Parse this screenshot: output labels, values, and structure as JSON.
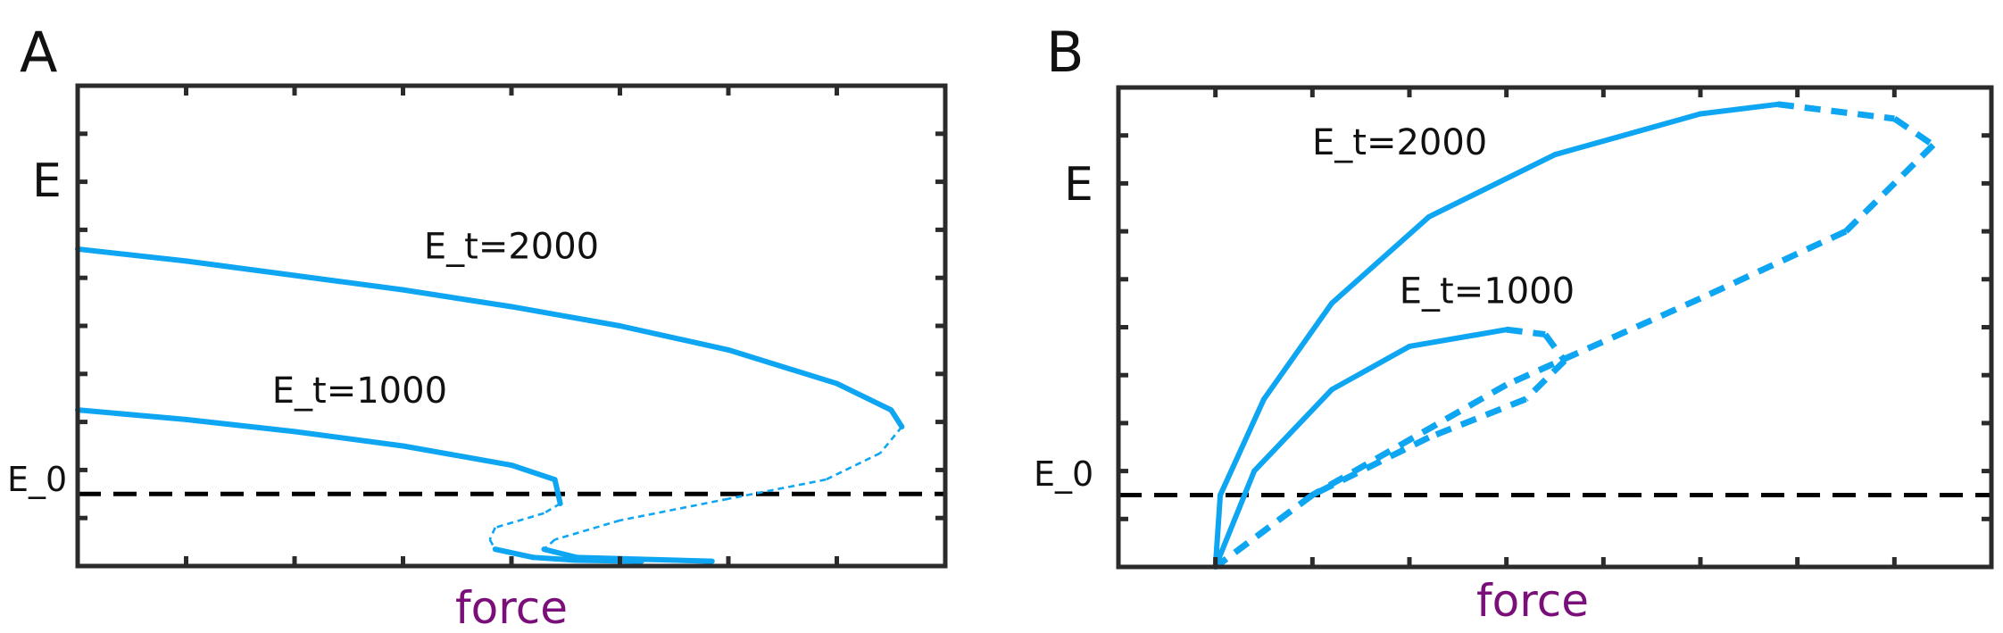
{
  "colors": {
    "curve": "#0ea5f2",
    "axes": "#2b2b2b",
    "reference_line": "#000000",
    "xlabel": "#7a0f7a"
  },
  "chart_data": [
    {
      "type": "line",
      "panel_label": "A",
      "xlabel": "force",
      "ylabel": "E",
      "xlim": [
        0,
        8
      ],
      "ylim": [
        0,
        10
      ],
      "xticks": 8,
      "yticks": 10,
      "reference_line": {
        "label": "E_0",
        "y": 1.5,
        "style": "dashed"
      },
      "series": [
        {
          "name": "E_t=2000",
          "label_at": [
            4.0,
            6.4
          ],
          "points": [
            [
              0.0,
              6.6,
              "solid"
            ],
            [
              1.0,
              6.35,
              "solid"
            ],
            [
              2.0,
              6.05,
              "solid"
            ],
            [
              3.0,
              5.75,
              "solid"
            ],
            [
              4.0,
              5.4,
              "solid"
            ],
            [
              5.0,
              5.0,
              "solid"
            ],
            [
              6.0,
              4.5,
              "solid"
            ],
            [
              7.0,
              3.8,
              "solid"
            ],
            [
              7.5,
              3.25,
              "solid"
            ],
            [
              7.6,
              2.9,
              "solid"
            ],
            [
              7.4,
              2.35,
              "dotted"
            ],
            [
              6.9,
              1.8,
              "dotted"
            ],
            [
              6.0,
              1.4,
              "dotted"
            ],
            [
              5.0,
              0.95,
              "dotted"
            ],
            [
              4.4,
              0.55,
              "dotted"
            ],
            [
              4.3,
              0.35,
              "dotted"
            ],
            [
              4.6,
              0.18,
              "solid"
            ],
            [
              5.85,
              0.1,
              "solid"
            ]
          ]
        },
        {
          "name": "E_t=1000",
          "label_at": [
            2.6,
            3.4
          ],
          "points": [
            [
              0.0,
              3.25,
              "solid"
            ],
            [
              1.0,
              3.05,
              "solid"
            ],
            [
              2.0,
              2.8,
              "solid"
            ],
            [
              3.0,
              2.5,
              "solid"
            ],
            [
              4.0,
              2.1,
              "solid"
            ],
            [
              4.4,
              1.8,
              "solid"
            ],
            [
              4.45,
              1.3,
              "solid"
            ],
            [
              4.3,
              1.1,
              "dotted"
            ],
            [
              3.85,
              0.8,
              "dotted"
            ],
            [
              3.8,
              0.55,
              "dotted"
            ],
            [
              3.85,
              0.35,
              "dotted"
            ],
            [
              4.2,
              0.18,
              "solid"
            ],
            [
              4.6,
              0.12,
              "solid"
            ],
            [
              5.2,
              0.1,
              "solid"
            ]
          ]
        }
      ]
    },
    {
      "type": "line",
      "panel_label": "B",
      "xlabel": "force",
      "ylabel": "E",
      "xlim": [
        0,
        9
      ],
      "ylim": [
        0,
        10
      ],
      "xticks": 9,
      "yticks": 10,
      "reference_line": {
        "label": "E_0",
        "y": 1.5,
        "style": "dashed"
      },
      "series": [
        {
          "name": "E_t=2000",
          "label_at": [
            2.9,
            8.6
          ],
          "points": [
            [
              1.0,
              0.0,
              "solid"
            ],
            [
              1.05,
              1.5,
              "solid"
            ],
            [
              1.5,
              3.5,
              "solid"
            ],
            [
              2.2,
              5.5,
              "solid"
            ],
            [
              3.2,
              7.3,
              "solid"
            ],
            [
              4.5,
              8.6,
              "solid"
            ],
            [
              6.0,
              9.45,
              "solid"
            ],
            [
              6.8,
              9.65,
              "solid"
            ],
            [
              8.0,
              9.35,
              "dashed"
            ],
            [
              8.4,
              8.8,
              "dashed"
            ],
            [
              7.5,
              7.0,
              "dashed"
            ],
            [
              6.0,
              5.6,
              "dashed"
            ],
            [
              4.0,
              3.8,
              "dashed"
            ],
            [
              2.0,
              1.5,
              "dashed"
            ],
            [
              1.0,
              0.0,
              "dashed"
            ]
          ]
        },
        {
          "name": "E_t=1000",
          "label_at": [
            3.8,
            5.5
          ],
          "points": [
            [
              1.0,
              0.0,
              "solid"
            ],
            [
              1.4,
              2.0,
              "solid"
            ],
            [
              2.2,
              3.7,
              "solid"
            ],
            [
              3.0,
              4.6,
              "solid"
            ],
            [
              4.0,
              4.95,
              "solid"
            ],
            [
              4.4,
              4.85,
              "dashed"
            ],
            [
              4.6,
              4.3,
              "dashed"
            ],
            [
              4.2,
              3.5,
              "dashed"
            ],
            [
              3.2,
              2.7,
              "dashed"
            ],
            [
              2.0,
              1.5,
              "dashed"
            ],
            [
              1.0,
              0.0,
              "dashed"
            ]
          ]
        }
      ]
    }
  ]
}
